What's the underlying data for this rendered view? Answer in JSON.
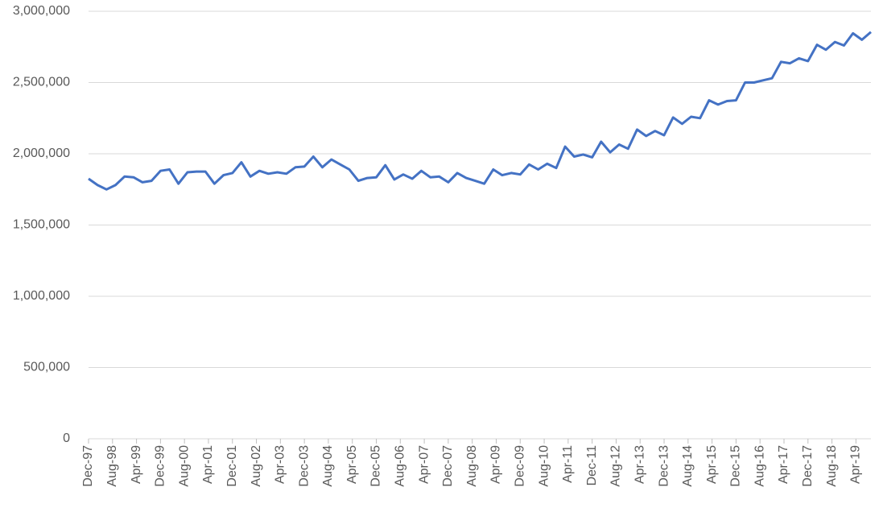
{
  "chart_data": {
    "type": "line",
    "x": [
      "Dec-97",
      "Mar-98",
      "Jun-98",
      "Sep-98",
      "Dec-98",
      "Mar-99",
      "Jun-99",
      "Sep-99",
      "Dec-99",
      "Mar-00",
      "Jun-00",
      "Sep-00",
      "Dec-00",
      "Mar-01",
      "Jun-01",
      "Sep-01",
      "Dec-01",
      "Mar-02",
      "Jun-02",
      "Sep-02",
      "Dec-02",
      "Mar-03",
      "Jun-03",
      "Sep-03",
      "Dec-03",
      "Mar-04",
      "Jun-04",
      "Sep-04",
      "Dec-04",
      "Mar-05",
      "Jun-05",
      "Sep-05",
      "Dec-05",
      "Mar-06",
      "Jun-06",
      "Sep-06",
      "Dec-06",
      "Mar-07",
      "Jun-07",
      "Sep-07",
      "Dec-07",
      "Mar-08",
      "Jun-08",
      "Sep-08",
      "Dec-08",
      "Mar-09",
      "Jun-09",
      "Sep-09",
      "Dec-09",
      "Mar-10",
      "Jun-10",
      "Sep-10",
      "Dec-10",
      "Mar-11",
      "Jun-11",
      "Sep-11",
      "Dec-11",
      "Mar-12",
      "Jun-12",
      "Sep-12",
      "Dec-12",
      "Mar-13",
      "Jun-13",
      "Sep-13",
      "Dec-13",
      "Mar-14",
      "Jun-14",
      "Sep-14",
      "Dec-14",
      "Mar-15",
      "Jun-15",
      "Sep-15",
      "Dec-15",
      "Mar-16",
      "Jun-16",
      "Sep-16",
      "Dec-16",
      "Mar-17",
      "Jun-17",
      "Sep-17",
      "Dec-17",
      "Mar-18",
      "Jun-18",
      "Sep-18",
      "Dec-18",
      "Mar-19",
      "Jun-19",
      "Sep-19"
    ],
    "series": [
      {
        "color": "#4472c4",
        "values": [
          1825000,
          1780000,
          1750000,
          1780000,
          1840000,
          1835000,
          1800000,
          1810000,
          1880000,
          1890000,
          1790000,
          1870000,
          1875000,
          1875000,
          1790000,
          1850000,
          1865000,
          1940000,
          1840000,
          1880000,
          1860000,
          1870000,
          1860000,
          1905000,
          1910000,
          1980000,
          1905000,
          1960000,
          1925000,
          1890000,
          1810000,
          1830000,
          1835000,
          1920000,
          1820000,
          1855000,
          1825000,
          1880000,
          1835000,
          1840000,
          1800000,
          1865000,
          1830000,
          1810000,
          1790000,
          1890000,
          1850000,
          1865000,
          1855000,
          1925000,
          1890000,
          1930000,
          1900000,
          2050000,
          1980000,
          1995000,
          1975000,
          2085000,
          2010000,
          2065000,
          2035000,
          2170000,
          2125000,
          2160000,
          2130000,
          2255000,
          2210000,
          2260000,
          2250000,
          2375000,
          2345000,
          2370000,
          2375000,
          2500000,
          2500000,
          2515000,
          2530000,
          2645000,
          2635000,
          2670000,
          2650000,
          2765000,
          2730000,
          2785000,
          2760000,
          2845000,
          2800000,
          2855000
        ]
      }
    ],
    "xlim": [
      "Dec-97",
      "Sep-19"
    ],
    "xticks": [
      "Dec-97",
      "Aug-98",
      "Apr-99",
      "Dec-99",
      "Aug-00",
      "Apr-01",
      "Dec-01",
      "Aug-02",
      "Apr-03",
      "Dec-03",
      "Aug-04",
      "Apr-05",
      "Dec-05",
      "Aug-06",
      "Apr-07",
      "Dec-07",
      "Aug-08",
      "Apr-09",
      "Dec-09",
      "Aug-10",
      "Apr-11",
      "Dec-11",
      "Aug-12",
      "Apr-13",
      "Dec-13",
      "Aug-14",
      "Apr-15",
      "Dec-15",
      "Aug-16",
      "Apr-17",
      "Dec-17",
      "Aug-18",
      "Apr-19"
    ],
    "ylim": [
      0,
      3000000
    ],
    "yticks": [
      0,
      {
        "value": 500000,
        "label": "500,000"
      },
      {
        "value": 1000000,
        "label": "1,000,000"
      },
      {
        "value": 1500000,
        "label": "1,500,000"
      },
      {
        "value": 2000000,
        "label": "2,000,000"
      },
      {
        "value": 2500000,
        "label": "2,500,000"
      },
      {
        "value": 3000000,
        "label": "3,000,000"
      }
    ],
    "grid": true
  }
}
